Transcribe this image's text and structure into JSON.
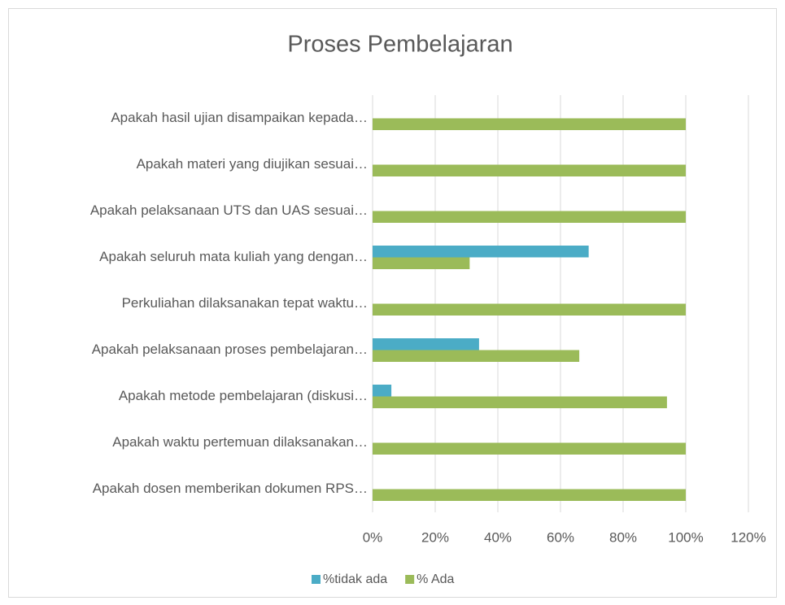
{
  "chart_data": {
    "type": "hbar",
    "title": "Proses Pembelajaran",
    "categories": [
      "Apakah hasil ujian disampaikan kepada…",
      "Apakah materi yang diujikan sesuai…",
      "Apakah pelaksanaan UTS dan UAS sesuai…",
      "Apakah seluruh mata kuliah yang dengan…",
      "Perkuliahan dilaksanakan tepat waktu…",
      "Apakah pelaksanaan proses pembelajaran…",
      "Apakah metode pembelajaran (diskusi…",
      "Apakah waktu pertemuan dilaksanakan…",
      "Apakah dosen memberikan dokumen RPS…"
    ],
    "series": [
      {
        "name": "%tidak ada",
        "color": "#4bacc6",
        "values": [
          0,
          0,
          0,
          69,
          0,
          34,
          6,
          0,
          0
        ]
      },
      {
        "name": "% Ada",
        "color": "#9bbb59",
        "values": [
          100,
          100,
          100,
          31,
          100,
          66,
          94,
          100,
          100
        ]
      }
    ],
    "xlim": [
      0,
      120
    ],
    "xticks": [
      {
        "value": 0,
        "label": "0%"
      },
      {
        "value": 20,
        "label": "20%"
      },
      {
        "value": 40,
        "label": "40%"
      },
      {
        "value": 60,
        "label": "60%"
      },
      {
        "value": 80,
        "label": "80%"
      },
      {
        "value": 100,
        "label": "100%"
      },
      {
        "value": 120,
        "label": "120%"
      }
    ],
    "grid": true,
    "legend": "bottom"
  }
}
